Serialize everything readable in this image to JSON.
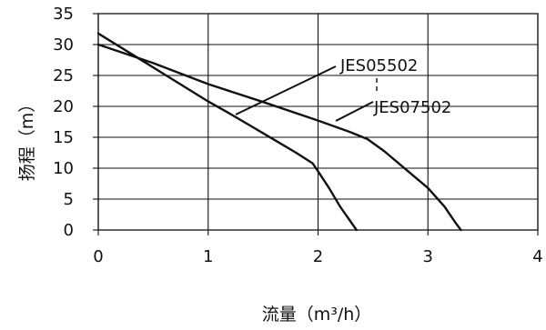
{
  "chart_data": {
    "type": "line",
    "xlabel": "流量（m³/h）",
    "ylabel": "扬程（m）",
    "xlim": [
      0,
      4
    ],
    "ylim": [
      0,
      35
    ],
    "x_ticks": [
      "0",
      "1",
      "2",
      "3",
      "4"
    ],
    "y_ticks": [
      "0",
      "5",
      "10",
      "15",
      "20",
      "25",
      "30",
      "35"
    ],
    "grid": true,
    "series": [
      {
        "name": "JES05502",
        "x": [
          0,
          0.3,
          0.6,
          0.8,
          1.0,
          1.2,
          1.4,
          1.6,
          1.8,
          1.95,
          2.0,
          2.1,
          2.2,
          2.35
        ],
        "y": [
          31.8,
          28.5,
          25.2,
          23.0,
          20.8,
          18.8,
          16.7,
          14.6,
          12.5,
          10.8,
          9.5,
          6.8,
          3.8,
          0
        ]
      },
      {
        "name": "JES07502",
        "x": [
          0,
          0.5,
          1.0,
          1.5,
          2.0,
          2.3,
          2.45,
          2.6,
          2.8,
          3.0,
          3.15,
          3.25,
          3.3
        ],
        "y": [
          30.0,
          27.0,
          23.6,
          20.7,
          17.7,
          15.8,
          14.7,
          12.8,
          9.8,
          6.8,
          3.8,
          1.2,
          0
        ]
      }
    ]
  }
}
